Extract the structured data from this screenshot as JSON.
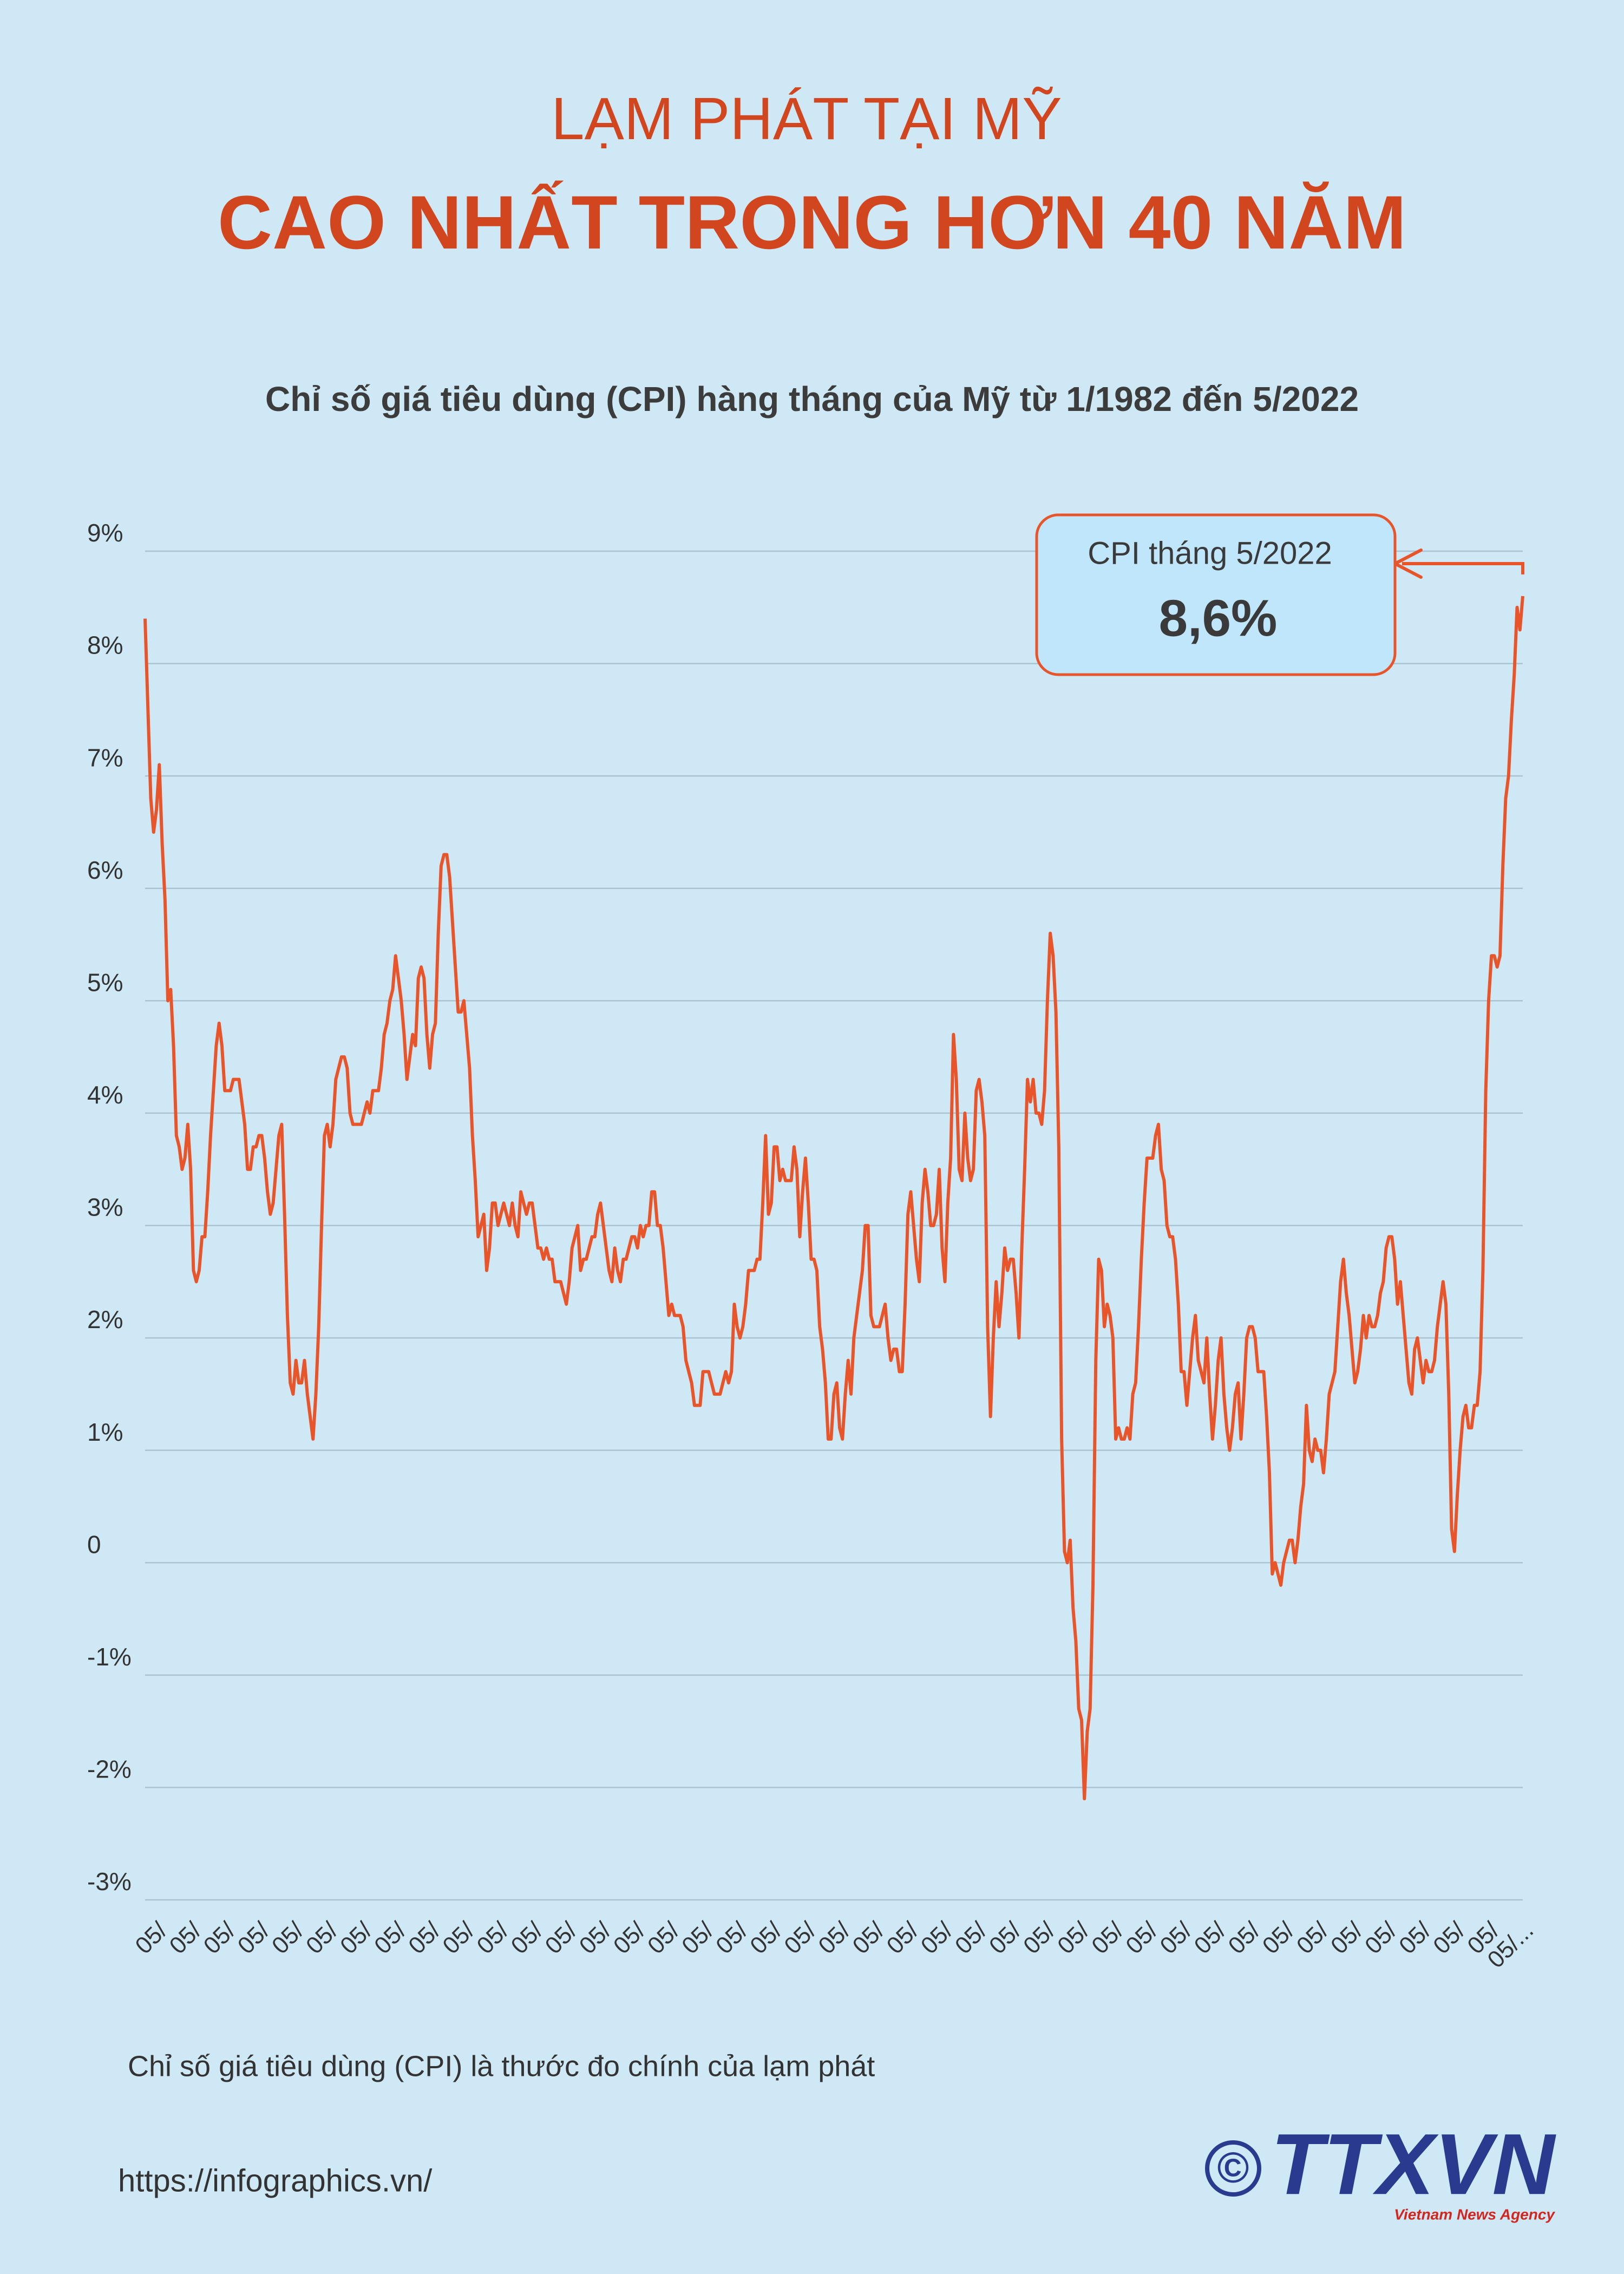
{
  "header": {
    "title_line1": "LẠM PHÁT TẠI MỸ",
    "title_line2": "CAO NHẤT TRONG HƠN 40 NĂM"
  },
  "chart_data": {
    "type": "line",
    "title": "Chỉ số giá tiêu dùng (CPI) hàng tháng của Mỹ từ 1/1982 đến 5/2022",
    "annotation": {
      "label": "CPI tháng 5/2022",
      "value_label": "8,6%"
    },
    "ylim": [
      -3,
      9
    ],
    "yticks": [
      {
        "value": 9,
        "label": "9%"
      },
      {
        "value": 8,
        "label": "8%"
      },
      {
        "value": 7,
        "label": "7%"
      },
      {
        "value": 6,
        "label": "6%"
      },
      {
        "value": 5,
        "label": "5%"
      },
      {
        "value": 4,
        "label": "4%"
      },
      {
        "value": 3,
        "label": "3%"
      },
      {
        "value": 2,
        "label": "2%"
      },
      {
        "value": 1,
        "label": "1%"
      },
      0,
      {
        "value": -1,
        "label": "-1%"
      },
      {
        "value": -2,
        "label": "-2%"
      },
      {
        "value": -3,
        "label": "-3%"
      }
    ],
    "grid": true,
    "categories": [
      null,
      null,
      null,
      null,
      "05/",
      null,
      null,
      null,
      null,
      null,
      null,
      null,
      null,
      null,
      null,
      null,
      "05/",
      null,
      null,
      null,
      null,
      null,
      null,
      null,
      null,
      null,
      null,
      null,
      "05/",
      null,
      null,
      null,
      null,
      null,
      null,
      null,
      null,
      null,
      null,
      null,
      "05/",
      null,
      null,
      null,
      null,
      null,
      null,
      null,
      null,
      null,
      null,
      null,
      "05/",
      null,
      null,
      null,
      null,
      null,
      null,
      null,
      null,
      null,
      null,
      null,
      "05/",
      null,
      null,
      null,
      null,
      null,
      null,
      null,
      null,
      null,
      null,
      null,
      "05/",
      null,
      null,
      null,
      null,
      null,
      null,
      null,
      null,
      null,
      null,
      null,
      "05/",
      null,
      null,
      null,
      null,
      null,
      null,
      null,
      null,
      null,
      null,
      null,
      "05/",
      null,
      null,
      null,
      null,
      null,
      null,
      null,
      null,
      null,
      null,
      null,
      "05/",
      null,
      null,
      null,
      null,
      null,
      null,
      null,
      null,
      null,
      null,
      null,
      "05/",
      null,
      null,
      null,
      null,
      null,
      null,
      null,
      null,
      null,
      null,
      null,
      "05/",
      null,
      null,
      null,
      null,
      null,
      null,
      null,
      null,
      null,
      null,
      null,
      "05/",
      null,
      null,
      null,
      null,
      null,
      null,
      null,
      null,
      null,
      null,
      null,
      "05/",
      null,
      null,
      null,
      null,
      null,
      null,
      null,
      null,
      null,
      null,
      null,
      "05/",
      null,
      null,
      null,
      null,
      null,
      null,
      null,
      null,
      null,
      null,
      null,
      "05/",
      null,
      null,
      null,
      null,
      null,
      null,
      null,
      null,
      null,
      null,
      null,
      "05/",
      null,
      null,
      null,
      null,
      null,
      null,
      null,
      null,
      null,
      null,
      null,
      "05/",
      null,
      null,
      null,
      null,
      null,
      null,
      null,
      null,
      null,
      null,
      null,
      "05/",
      null,
      null,
      null,
      null,
      null,
      null,
      null,
      null,
      null,
      null,
      null,
      "05/",
      null,
      null,
      null,
      null,
      null,
      null,
      null,
      null,
      null,
      null,
      null,
      "05/",
      null,
      null,
      null,
      null,
      null,
      null,
      null,
      null,
      null,
      null,
      null,
      "05/",
      null,
      null,
      null,
      null,
      null,
      null,
      null,
      null,
      null,
      null,
      null,
      "05/",
      null,
      null,
      null,
      null,
      null,
      null,
      null,
      null,
      null,
      null,
      null,
      "05/",
      null,
      null,
      null,
      null,
      null,
      null,
      null,
      null,
      null,
      null,
      null,
      "05/",
      null,
      null,
      null,
      null,
      null,
      null,
      null,
      null,
      null,
      null,
      null,
      "05/",
      null,
      null,
      null,
      null,
      null,
      null,
      null,
      null,
      null,
      null,
      null,
      "05/",
      null,
      null,
      null,
      null,
      null,
      null,
      null,
      null,
      null,
      null,
      null,
      "05/",
      null,
      null,
      null,
      null,
      null,
      null,
      null,
      null,
      null,
      null,
      null,
      "05/",
      null,
      null,
      null,
      null,
      null,
      null,
      null,
      null,
      null,
      null,
      null,
      "05/",
      null,
      null,
      null,
      null,
      null,
      null,
      null,
      null,
      null,
      null,
      null,
      "05/",
      null,
      null,
      null,
      null,
      null,
      null,
      null,
      null,
      null,
      null,
      null,
      "05/",
      null,
      null,
      null,
      null,
      null,
      null,
      null,
      null,
      null,
      null,
      null,
      "05/",
      null,
      null,
      null,
      null,
      null,
      null,
      null,
      null,
      null,
      null,
      null,
      "05/",
      null,
      null,
      null,
      null,
      null,
      null,
      null,
      null,
      null,
      null,
      null,
      "05/",
      null,
      null,
      null,
      null,
      null,
      null,
      null,
      null,
      null,
      null,
      null,
      "05/",
      null,
      null,
      null,
      null,
      null,
      null,
      null,
      null,
      null,
      null,
      null,
      "05/",
      null,
      null,
      null,
      null,
      null,
      null,
      null,
      null,
      null,
      null,
      null,
      "05/",
      null,
      null,
      null,
      null,
      null,
      null,
      null,
      null,
      null,
      null,
      null,
      "05/",
      null,
      null,
      null,
      null,
      null,
      null,
      null,
      null,
      null,
      null,
      null,
      "05/",
      null,
      null,
      null,
      null,
      null,
      null,
      null,
      null,
      null,
      null,
      null,
      "05/..."
    ],
    "series": [
      {
        "color": "#e8552b",
        "values": [
          8.4,
          7.6,
          6.8,
          6.5,
          6.7,
          7.1,
          6.4,
          5.9,
          5.0,
          5.1,
          4.6,
          3.8,
          3.7,
          3.5,
          3.6,
          3.9,
          3.5,
          2.6,
          2.5,
          2.6,
          2.9,
          2.9,
          3.3,
          3.8,
          4.2,
          4.6,
          4.8,
          4.6,
          4.2,
          4.2,
          4.2,
          4.3,
          4.3,
          4.3,
          4.1,
          3.9,
          3.5,
          3.5,
          3.7,
          3.7,
          3.8,
          3.8,
          3.6,
          3.3,
          3.1,
          3.2,
          3.5,
          3.8,
          3.9,
          3.1,
          2.2,
          1.6,
          1.5,
          1.8,
          1.6,
          1.6,
          1.8,
          1.5,
          1.3,
          1.1,
          1.5,
          2.1,
          3.0,
          3.8,
          3.9,
          3.7,
          3.9,
          4.3,
          4.4,
          4.5,
          4.5,
          4.4,
          4.0,
          3.9,
          3.9,
          3.9,
          3.9,
          4.0,
          4.1,
          4.0,
          4.2,
          4.2,
          4.2,
          4.4,
          4.7,
          4.8,
          5.0,
          5.1,
          5.4,
          5.2,
          5.0,
          4.7,
          4.3,
          4.5,
          4.7,
          4.6,
          5.2,
          5.3,
          5.2,
          4.7,
          4.4,
          4.7,
          4.8,
          5.6,
          6.2,
          6.3,
          6.3,
          6.1,
          5.7,
          5.3,
          4.9,
          4.9,
          5.0,
          4.7,
          4.4,
          3.8,
          3.4,
          2.9,
          3.0,
          3.1,
          2.6,
          2.8,
          3.2,
          3.2,
          3.0,
          3.1,
          3.2,
          3.1,
          3.0,
          3.2,
          3.0,
          2.9,
          3.3,
          3.2,
          3.1,
          3.2,
          3.2,
          3.0,
          2.8,
          2.8,
          2.7,
          2.8,
          2.7,
          2.7,
          2.5,
          2.5,
          2.5,
          2.4,
          2.3,
          2.5,
          2.8,
          2.9,
          3.0,
          2.6,
          2.7,
          2.7,
          2.8,
          2.9,
          2.9,
          3.1,
          3.2,
          3.0,
          2.8,
          2.6,
          2.5,
          2.8,
          2.6,
          2.5,
          2.7,
          2.7,
          2.8,
          2.9,
          2.9,
          2.8,
          3.0,
          2.9,
          3.0,
          3.0,
          3.3,
          3.3,
          3.0,
          3.0,
          2.8,
          2.5,
          2.2,
          2.3,
          2.2,
          2.2,
          2.2,
          2.1,
          1.8,
          1.7,
          1.6,
          1.4,
          1.4,
          1.4,
          1.7,
          1.7,
          1.7,
          1.6,
          1.5,
          1.5,
          1.5,
          1.6,
          1.7,
          1.6,
          1.7,
          2.3,
          2.1,
          2.0,
          2.1,
          2.3,
          2.6,
          2.6,
          2.6,
          2.7,
          2.7,
          3.2,
          3.8,
          3.1,
          3.2,
          3.7,
          3.7,
          3.4,
          3.5,
          3.4,
          3.4,
          3.4,
          3.7,
          3.5,
          2.9,
          3.3,
          3.6,
          3.2,
          2.7,
          2.7,
          2.6,
          2.1,
          1.9,
          1.6,
          1.1,
          1.1,
          1.5,
          1.6,
          1.2,
          1.1,
          1.5,
          1.8,
          1.5,
          2.0,
          2.2,
          2.4,
          2.6,
          3.0,
          3.0,
          2.2,
          2.1,
          2.1,
          2.1,
          2.2,
          2.3,
          2.0,
          1.8,
          1.9,
          1.9,
          1.7,
          1.7,
          2.3,
          3.1,
          3.3,
          3.0,
          2.7,
          2.5,
          3.2,
          3.5,
          3.3,
          3.0,
          3.0,
          3.1,
          3.5,
          2.8,
          2.5,
          3.2,
          3.6,
          4.7,
          4.3,
          3.5,
          3.4,
          4.0,
          3.6,
          3.4,
          3.5,
          4.2,
          4.3,
          4.1,
          3.8,
          2.1,
          1.3,
          2.0,
          2.5,
          2.1,
          2.4,
          2.8,
          2.6,
          2.7,
          2.7,
          2.4,
          2.0,
          2.8,
          3.5,
          4.3,
          4.1,
          4.3,
          4.0,
          4.0,
          3.9,
          4.2,
          5.0,
          5.6,
          5.4,
          4.9,
          3.7,
          1.1,
          0.1,
          0.0,
          0.2,
          -0.4,
          -0.7,
          -1.3,
          -1.4,
          -2.1,
          -1.5,
          -1.3,
          -0.2,
          1.8,
          2.7,
          2.6,
          2.1,
          2.3,
          2.2,
          2.0,
          1.1,
          1.2,
          1.1,
          1.1,
          1.2,
          1.1,
          1.5,
          1.6,
          2.1,
          2.7,
          3.2,
          3.6,
          3.6,
          3.6,
          3.8,
          3.9,
          3.5,
          3.4,
          3.0,
          2.9,
          2.9,
          2.7,
          2.3,
          1.7,
          1.7,
          1.4,
          1.7,
          2.0,
          2.2,
          1.8,
          1.7,
          1.6,
          2.0,
          1.5,
          1.1,
          1.4,
          1.8,
          2.0,
          1.5,
          1.2,
          1.0,
          1.2,
          1.5,
          1.6,
          1.1,
          1.5,
          2.0,
          2.1,
          2.1,
          2.0,
          1.7,
          1.7,
          1.7,
          1.3,
          0.8,
          -0.1,
          0.0,
          -0.1,
          -0.2,
          0.0,
          0.1,
          0.2,
          0.2,
          0.0,
          0.2,
          0.5,
          0.7,
          1.4,
          1.0,
          0.9,
          1.1,
          1.0,
          1.0,
          0.8,
          1.1,
          1.5,
          1.6,
          1.7,
          2.1,
          2.5,
          2.7,
          2.4,
          2.2,
          1.9,
          1.6,
          1.7,
          1.9,
          2.2,
          2.0,
          2.2,
          2.1,
          2.1,
          2.2,
          2.4,
          2.5,
          2.8,
          2.9,
          2.9,
          2.7,
          2.3,
          2.5,
          2.2,
          1.9,
          1.6,
          1.5,
          1.9,
          2.0,
          1.8,
          1.6,
          1.8,
          1.7,
          1.7,
          1.8,
          2.1,
          2.3,
          2.5,
          2.3,
          1.5,
          0.3,
          0.1,
          0.6,
          1.0,
          1.3,
          1.4,
          1.2,
          1.2,
          1.4,
          1.4,
          1.7,
          2.6,
          4.2,
          5.0,
          5.4,
          5.4,
          5.3,
          5.4,
          6.2,
          6.8,
          7.0,
          7.5,
          7.9,
          8.5,
          8.3,
          8.6
        ]
      }
    ]
  },
  "footer": {
    "note": "Chỉ số giá tiêu dùng (CPI) là thước đo chính của lạm phát",
    "url": "https://infographics.vn/",
    "copyright": "©",
    "logo": "TTXVN",
    "logo_sub": "Vietnam News Agency"
  }
}
